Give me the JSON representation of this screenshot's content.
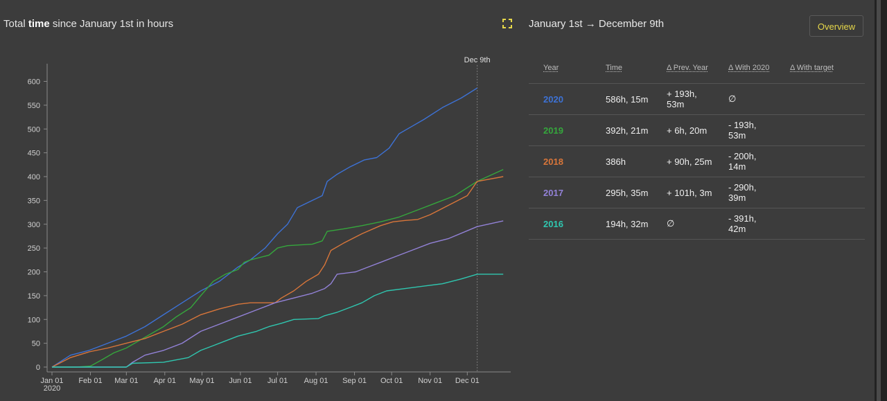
{
  "header": {
    "title_prefix": "Total",
    "title_bold": "time",
    "title_suffix": "since January 1st in hours",
    "date_range_start": "January 1st",
    "date_range_arrow": "→",
    "date_range_end": "December 9th",
    "overview_label": "Overview"
  },
  "icons": {
    "expand": "expand-icon",
    "arrow": "arrow-right-icon"
  },
  "colors": {
    "2020": "#3d72d6",
    "2019": "#35a73c",
    "2018": "#d9763a",
    "2017": "#9382d8",
    "2016": "#2fc7b0",
    "accent": "#e7d84a"
  },
  "table": {
    "headers": [
      "Year",
      "Time",
      "Δ Prev. Year",
      "Δ With 2020",
      "Δ With target"
    ],
    "rows": [
      {
        "year": "2020",
        "time": "586h, 15m",
        "prev": "+ 193h, 53m",
        "with2020": "∅",
        "target": ""
      },
      {
        "year": "2019",
        "time": "392h, 21m",
        "prev": "+ 6h, 20m",
        "with2020": "- 193h, 53m",
        "target": ""
      },
      {
        "year": "2018",
        "time": "386h",
        "prev": "+ 90h, 25m",
        "with2020": "- 200h, 14m",
        "target": ""
      },
      {
        "year": "2017",
        "time": "295h, 35m",
        "prev": "+ 101h, 3m",
        "with2020": "- 290h, 39m",
        "target": ""
      },
      {
        "year": "2016",
        "time": "194h, 32m",
        "prev": "∅",
        "with2020": "- 391h, 42m",
        "target": ""
      }
    ]
  },
  "chart_data": {
    "type": "line",
    "title": "",
    "xlabel": "",
    "ylabel": "",
    "x_ticks": [
      "Jan 01",
      "Feb 01",
      "Mar 01",
      "Apr 01",
      "May 01",
      "Jun 01",
      "Jul 01",
      "Aug 01",
      "Sep 01",
      "Oct 01",
      "Nov 01",
      "Dec 01"
    ],
    "x_year_label": "2020",
    "y_ticks": [
      0,
      50,
      100,
      150,
      200,
      250,
      300,
      350,
      400,
      450,
      500,
      550,
      600
    ],
    "ylim": [
      0,
      640
    ],
    "xlim_day": [
      0,
      365
    ],
    "marker_label": "Dec 9th",
    "marker_day": 343,
    "grid": false,
    "legend": "none",
    "series": [
      {
        "key": "2020",
        "points": [
          [
            0,
            0
          ],
          [
            15,
            25
          ],
          [
            30,
            35
          ],
          [
            45,
            50
          ],
          [
            60,
            65
          ],
          [
            75,
            85
          ],
          [
            90,
            110
          ],
          [
            105,
            135
          ],
          [
            120,
            160
          ],
          [
            135,
            180
          ],
          [
            150,
            210
          ],
          [
            160,
            225
          ],
          [
            172,
            250
          ],
          [
            182,
            280
          ],
          [
            190,
            300
          ],
          [
            198,
            335
          ],
          [
            210,
            350
          ],
          [
            218,
            360
          ],
          [
            222,
            390
          ],
          [
            230,
            405
          ],
          [
            240,
            420
          ],
          [
            252,
            435
          ],
          [
            262,
            440
          ],
          [
            272,
            460
          ],
          [
            280,
            490
          ],
          [
            290,
            505
          ],
          [
            300,
            520
          ],
          [
            315,
            545
          ],
          [
            330,
            565
          ],
          [
            343,
            586
          ]
        ]
      },
      {
        "key": "2019",
        "points": [
          [
            0,
            0
          ],
          [
            20,
            0
          ],
          [
            31,
            2
          ],
          [
            40,
            15
          ],
          [
            50,
            30
          ],
          [
            60,
            40
          ],
          [
            70,
            55
          ],
          [
            80,
            70
          ],
          [
            90,
            85
          ],
          [
            100,
            105
          ],
          [
            112,
            125
          ],
          [
            120,
            150
          ],
          [
            130,
            180
          ],
          [
            140,
            195
          ],
          [
            150,
            205
          ],
          [
            155,
            220
          ],
          [
            160,
            225
          ],
          [
            175,
            235
          ],
          [
            182,
            250
          ],
          [
            190,
            255
          ],
          [
            210,
            258
          ],
          [
            218,
            265
          ],
          [
            222,
            285
          ],
          [
            235,
            290
          ],
          [
            250,
            297
          ],
          [
            265,
            305
          ],
          [
            280,
            315
          ],
          [
            295,
            330
          ],
          [
            310,
            345
          ],
          [
            325,
            360
          ],
          [
            343,
            390
          ],
          [
            364,
            415
          ]
        ]
      },
      {
        "key": "2018",
        "points": [
          [
            0,
            0
          ],
          [
            15,
            20
          ],
          [
            30,
            32
          ],
          [
            45,
            40
          ],
          [
            60,
            50
          ],
          [
            75,
            60
          ],
          [
            90,
            75
          ],
          [
            105,
            90
          ],
          [
            120,
            110
          ],
          [
            135,
            122
          ],
          [
            150,
            132
          ],
          [
            160,
            135
          ],
          [
            172,
            135
          ],
          [
            180,
            135
          ],
          [
            185,
            145
          ],
          [
            195,
            160
          ],
          [
            205,
            180
          ],
          [
            215,
            195
          ],
          [
            220,
            215
          ],
          [
            225,
            245
          ],
          [
            235,
            260
          ],
          [
            250,
            280
          ],
          [
            265,
            297
          ],
          [
            275,
            305
          ],
          [
            285,
            308
          ],
          [
            295,
            310
          ],
          [
            305,
            320
          ],
          [
            320,
            340
          ],
          [
            335,
            360
          ],
          [
            343,
            390
          ],
          [
            364,
            400
          ]
        ]
      },
      {
        "key": "2017",
        "points": [
          [
            0,
            0
          ],
          [
            40,
            0
          ],
          [
            60,
            0
          ],
          [
            65,
            10
          ],
          [
            75,
            25
          ],
          [
            90,
            35
          ],
          [
            105,
            50
          ],
          [
            120,
            75
          ],
          [
            135,
            90
          ],
          [
            150,
            105
          ],
          [
            165,
            120
          ],
          [
            180,
            135
          ],
          [
            195,
            145
          ],
          [
            210,
            155
          ],
          [
            220,
            165
          ],
          [
            225,
            175
          ],
          [
            230,
            195
          ],
          [
            245,
            200
          ],
          [
            255,
            210
          ],
          [
            265,
            220
          ],
          [
            275,
            230
          ],
          [
            290,
            245
          ],
          [
            305,
            260
          ],
          [
            320,
            270
          ],
          [
            343,
            295
          ],
          [
            364,
            307
          ]
        ]
      },
      {
        "key": "2016",
        "points": [
          [
            0,
            0
          ],
          [
            60,
            0
          ],
          [
            65,
            8
          ],
          [
            90,
            10
          ],
          [
            100,
            15
          ],
          [
            110,
            20
          ],
          [
            120,
            35
          ],
          [
            130,
            45
          ],
          [
            140,
            55
          ],
          [
            150,
            65
          ],
          [
            165,
            75
          ],
          [
            175,
            85
          ],
          [
            185,
            92
          ],
          [
            195,
            100
          ],
          [
            215,
            102
          ],
          [
            220,
            108
          ],
          [
            230,
            115
          ],
          [
            240,
            125
          ],
          [
            250,
            135
          ],
          [
            260,
            150
          ],
          [
            270,
            160
          ],
          [
            285,
            165
          ],
          [
            300,
            170
          ],
          [
            315,
            175
          ],
          [
            330,
            185
          ],
          [
            343,
            195
          ],
          [
            364,
            195
          ]
        ]
      }
    ]
  }
}
